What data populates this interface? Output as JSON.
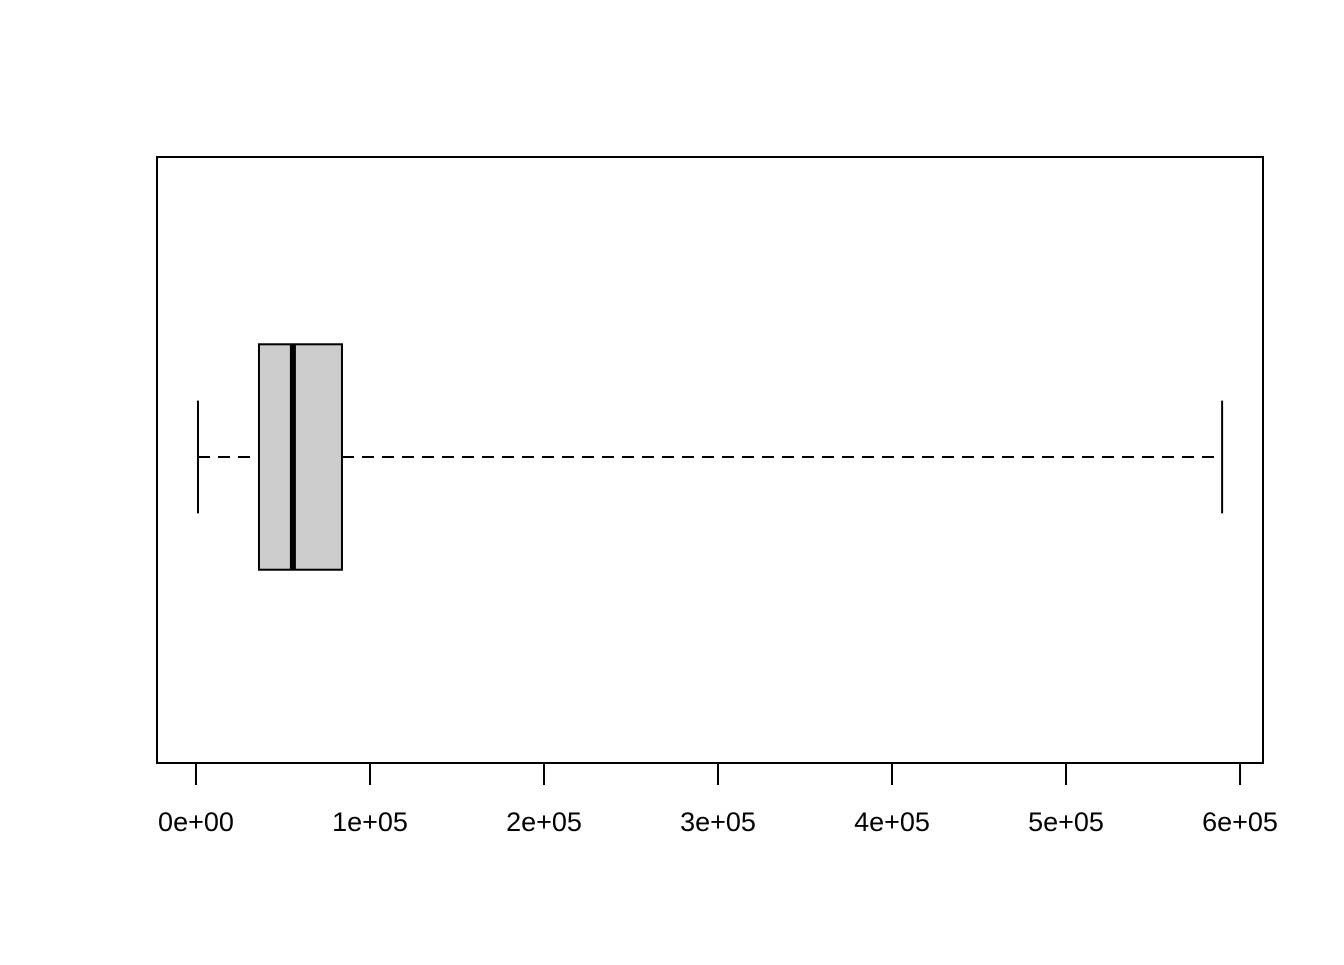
{
  "chart_data": {
    "type": "boxplot",
    "orientation": "horizontal",
    "boxes": [
      {
        "whisker_low": 1150,
        "q1": 36200,
        "median": 55700,
        "q3": 83900,
        "whisker_high": 589700
      }
    ],
    "color": "#cccccc",
    "xlim": [
      -22400,
      613200
    ],
    "xticks": [
      {
        "value": 0,
        "label": "0e+00"
      },
      {
        "value": 100000,
        "label": "1e+05"
      },
      {
        "value": 200000,
        "label": "2e+05"
      },
      {
        "value": 300000,
        "label": "3e+05"
      },
      {
        "value": 400000,
        "label": "4e+05"
      },
      {
        "value": 500000,
        "label": "5e+05"
      },
      {
        "value": 600000,
        "label": "6e+05"
      }
    ]
  }
}
